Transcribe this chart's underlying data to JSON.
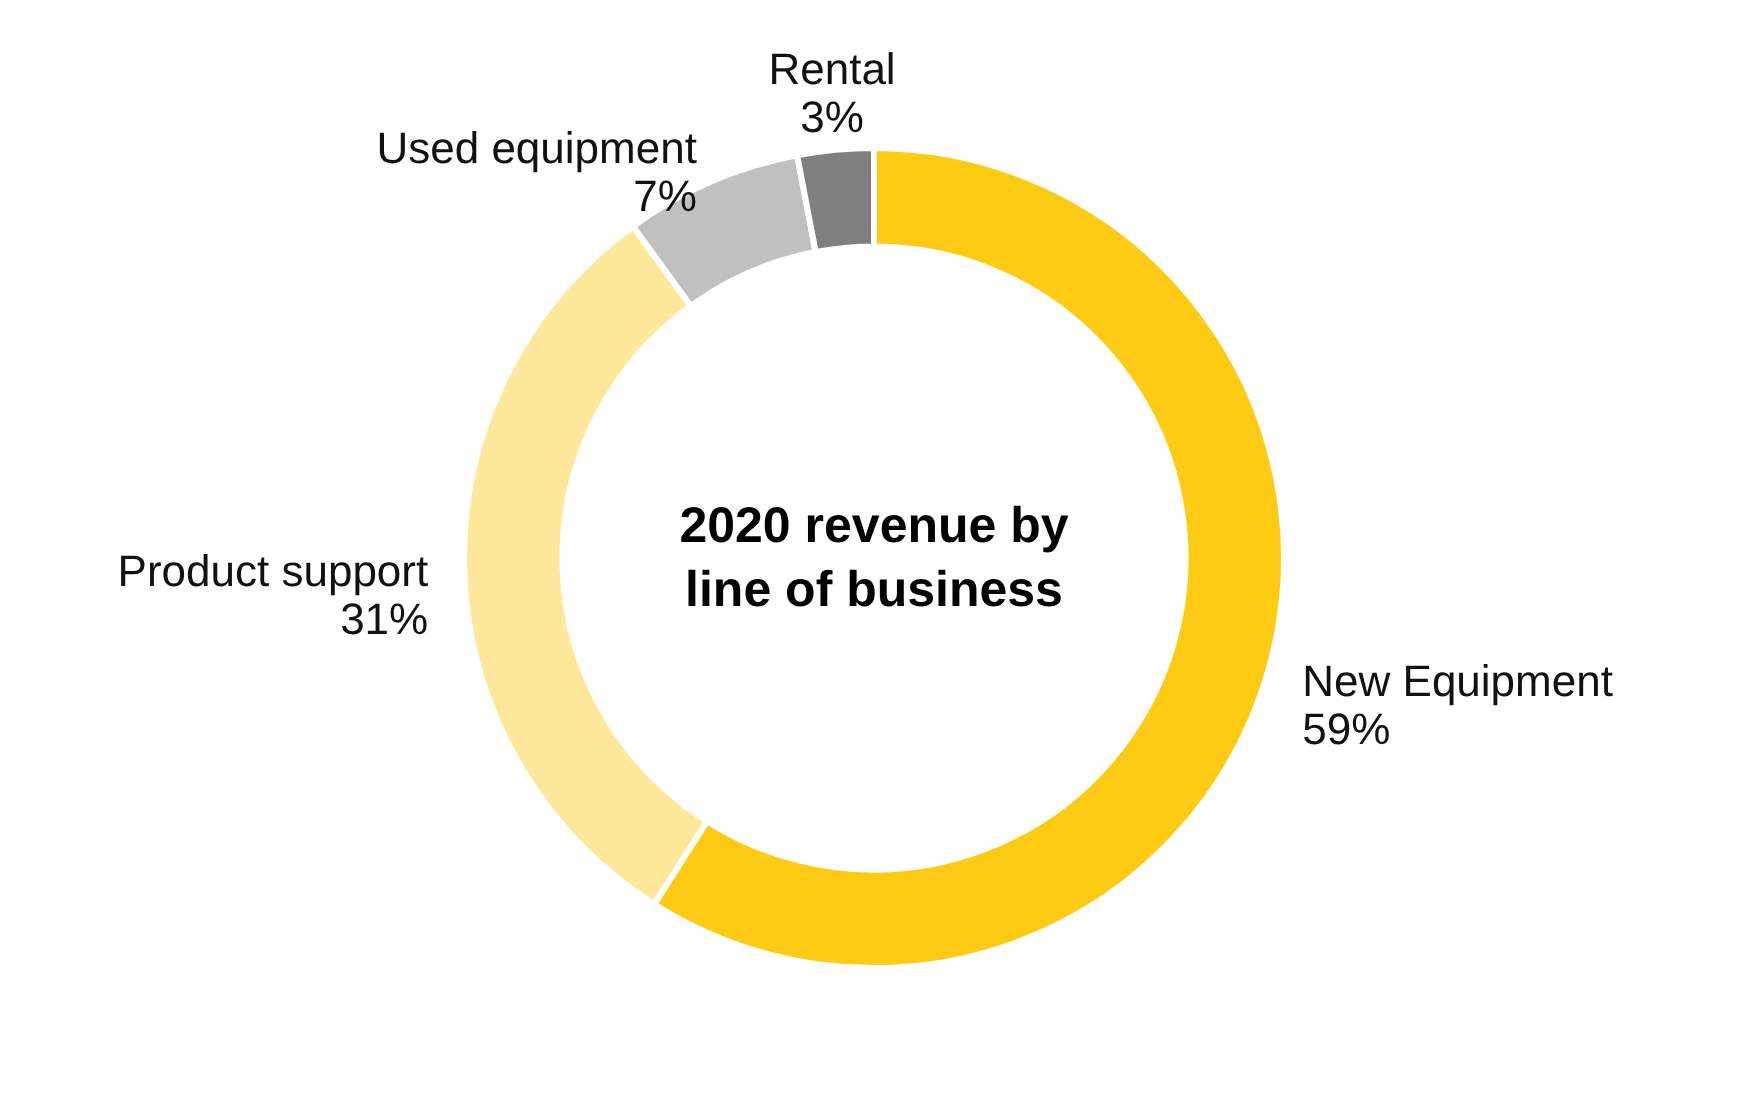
{
  "chart_data": {
    "type": "donut",
    "title": "2020 revenue by\nline of business",
    "categories": [
      "New Equipment",
      "Product support",
      "Used equipment",
      "Rental"
    ],
    "values": [
      59,
      31,
      7,
      3
    ],
    "colors": [
      "#fdcb13",
      "#fde89c",
      "#c0c0c0",
      "#7f7f7f"
    ],
    "value_labels": [
      "59%",
      "31%",
      "7%",
      "3%"
    ]
  }
}
